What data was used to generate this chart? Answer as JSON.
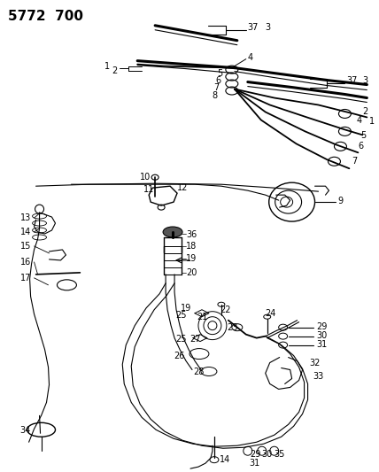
{
  "title": "5772  700",
  "bg_color": "#ffffff",
  "line_color": "#000000",
  "fig_width": 4.28,
  "fig_height": 5.33,
  "dpi": 100
}
